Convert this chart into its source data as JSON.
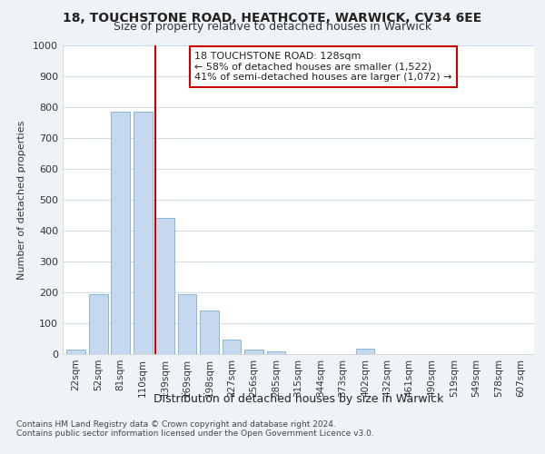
{
  "title1": "18, TOUCHSTONE ROAD, HEATHCOTE, WARWICK, CV34 6EE",
  "title2": "Size of property relative to detached houses in Warwick",
  "xlabel": "Distribution of detached houses by size in Warwick",
  "ylabel": "Number of detached properties",
  "categories": [
    "22sqm",
    "52sqm",
    "81sqm",
    "110sqm",
    "139sqm",
    "169sqm",
    "198sqm",
    "227sqm",
    "256sqm",
    "285sqm",
    "315sqm",
    "344sqm",
    "373sqm",
    "402sqm",
    "432sqm",
    "461sqm",
    "490sqm",
    "519sqm",
    "549sqm",
    "578sqm",
    "607sqm"
  ],
  "values": [
    15,
    193,
    785,
    785,
    440,
    193,
    140,
    48,
    15,
    10,
    0,
    0,
    0,
    18,
    0,
    0,
    0,
    0,
    0,
    0,
    0
  ],
  "bar_color": "#c5d8ee",
  "bar_edge_color": "#7bafd4",
  "highlight_line_color": "#cc0000",
  "highlight_line_index": 4,
  "annotation_line1": "18 TOUCHSTONE ROAD: 128sqm",
  "annotation_line2": "← 58% of detached houses are smaller (1,522)",
  "annotation_line3": "41% of semi-detached houses are larger (1,072) →",
  "annotation_box_color": "#cc0000",
  "ylim": [
    0,
    1000
  ],
  "yticks": [
    0,
    100,
    200,
    300,
    400,
    500,
    600,
    700,
    800,
    900,
    1000
  ],
  "bg_color": "#eef3f8",
  "plot_bg_color": "#ffffff",
  "grid_color": "#d0dce8",
  "footer1": "Contains HM Land Registry data © Crown copyright and database right 2024.",
  "footer2": "Contains public sector information licensed under the Open Government Licence v3.0."
}
